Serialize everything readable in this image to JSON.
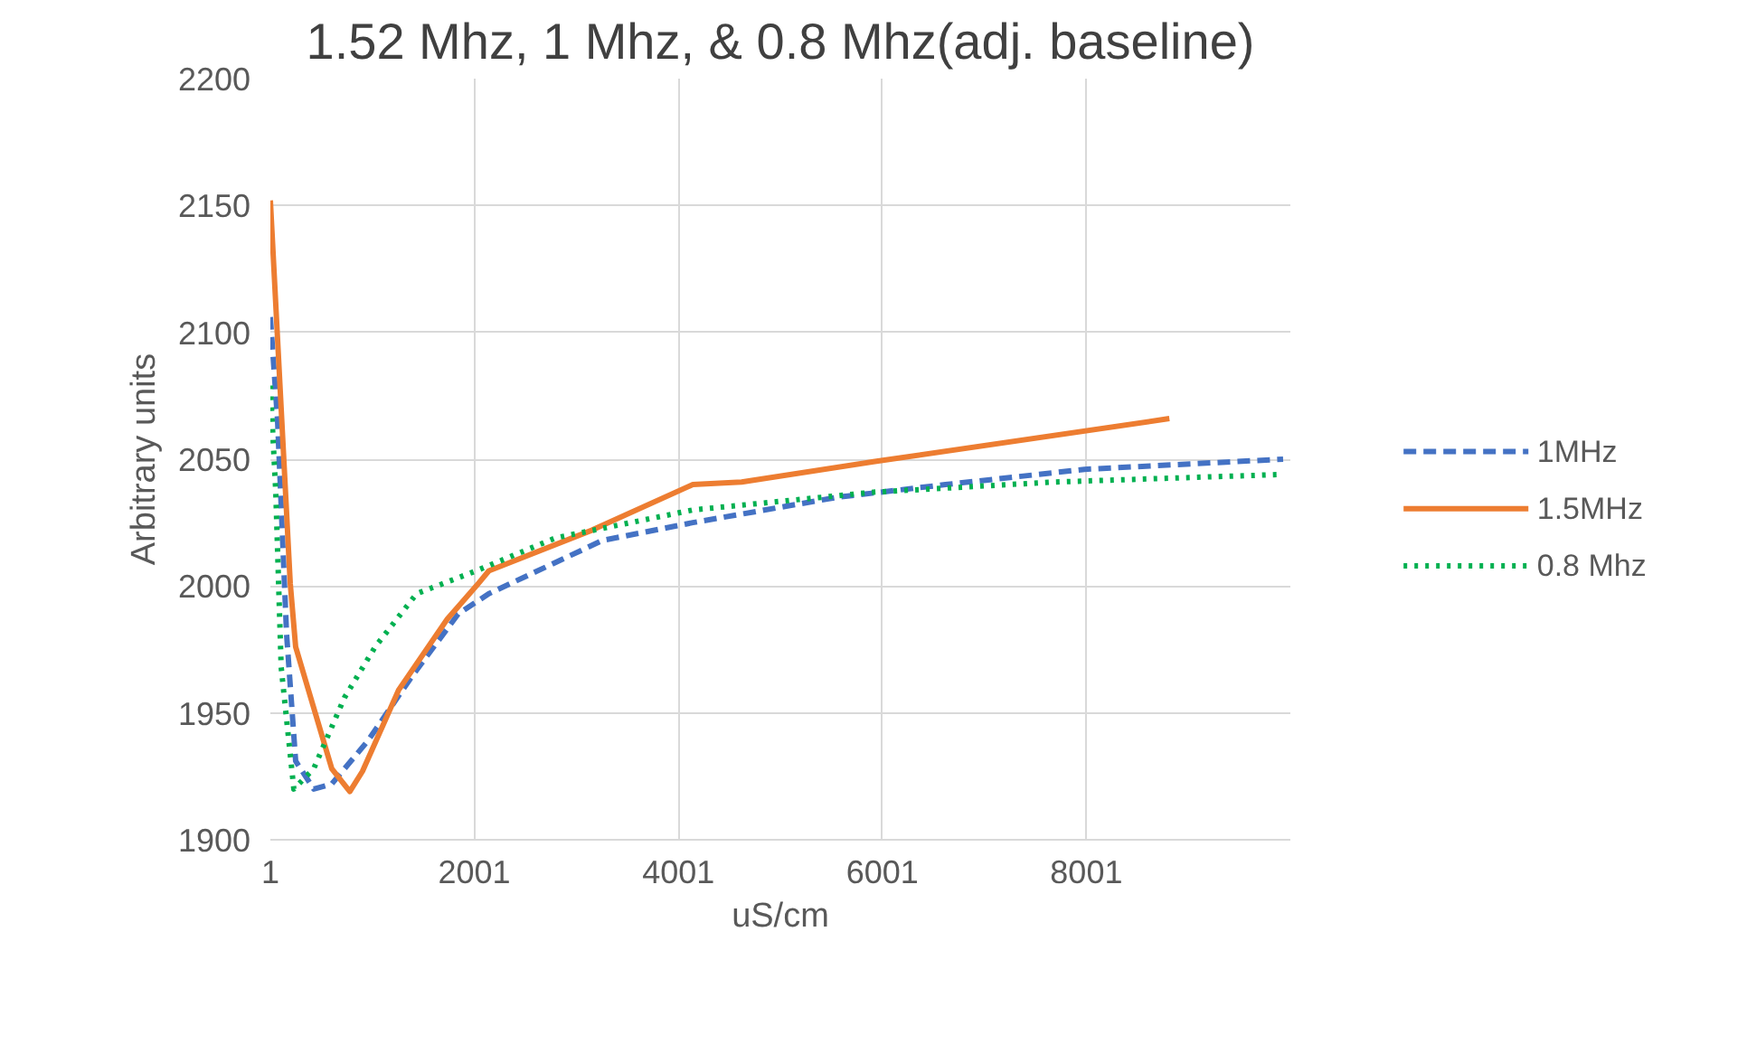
{
  "chart_data": {
    "type": "line",
    "title": "1.52 Mhz, 1 Mhz, & 0.8 Mhz(adj. baseline)",
    "xlabel": "uS/cm",
    "ylabel": "Arbitrary units",
    "xlim": [
      1,
      10001
    ],
    "xticks": [
      1,
      2001,
      4001,
      6001,
      8001
    ],
    "ylim": [
      1900,
      2200
    ],
    "yticks": [
      1900,
      1950,
      2000,
      2050,
      2100,
      2150,
      2200
    ],
    "grid": true,
    "legend": "right",
    "series": [
      {
        "name": "1MHz",
        "color": "#4472c4",
        "line_style": "dashed",
        "x": [
          1,
          72,
          160,
          249,
          426,
          603,
          957,
          1382,
          1842,
          2143,
          3258,
          4143,
          5558,
          6620,
          7983,
          9930
        ],
        "values": [
          2106,
          2065,
          1981,
          1931,
          1920,
          1922,
          1939,
          1964,
          1989,
          1997,
          2018,
          2025,
          2035,
          2040,
          2046,
          2050
        ]
      },
      {
        "name": "1.5MHz",
        "color": "#ed7d31",
        "line_style": "solid",
        "x": [
          1,
          196,
          249,
          603,
          780,
          904,
          1258,
          1736,
          2019,
          2143,
          3152,
          4143,
          4621,
          5913,
          8815
        ],
        "values": [
          2152,
          2001,
          1976,
          1928,
          1919,
          1927,
          1959,
          1987,
          2000,
          2006,
          2022,
          2040,
          2041,
          2049,
          2066
        ]
      },
      {
        "name": "0.8 Mhz",
        "color": "#00b050",
        "line_style": "dotted",
        "x": [
          1,
          54,
          107,
          231,
          426,
          727,
          1028,
          1435,
          2019,
          2798,
          4143,
          5913,
          7682,
          9930
        ],
        "values": [
          2079,
          2037,
          1968,
          1920,
          1928,
          1956,
          1976,
          1997,
          2006,
          2019,
          2030,
          2037,
          2041,
          2044
        ]
      }
    ]
  }
}
